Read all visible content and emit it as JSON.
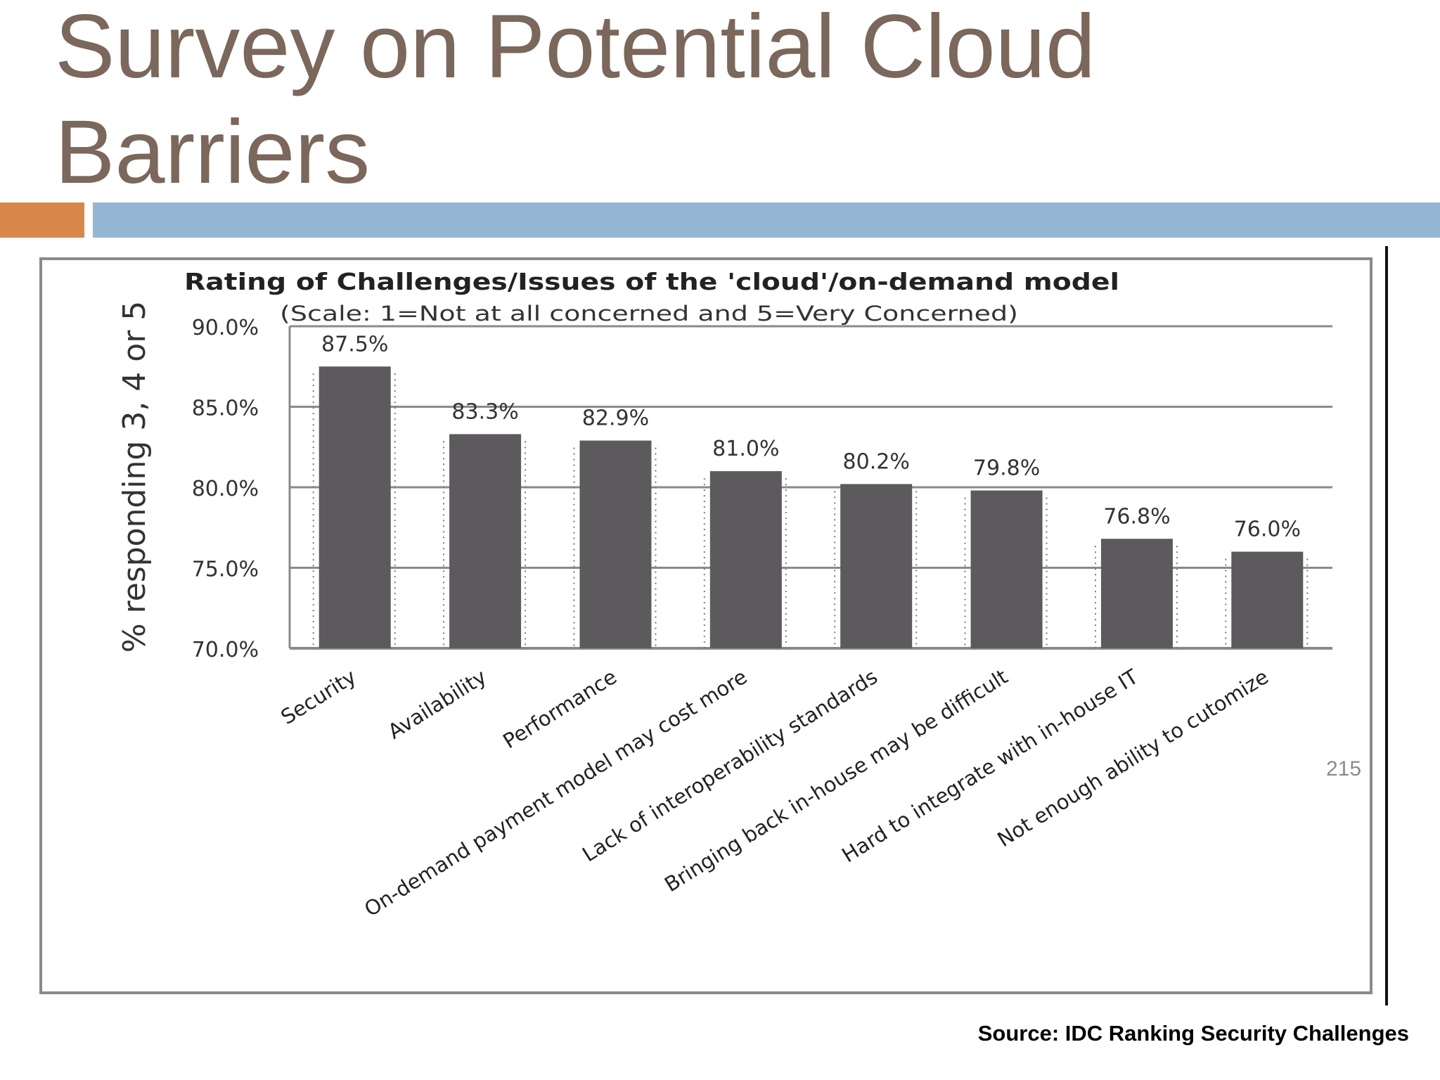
{
  "slide": {
    "title_lines": [
      "Survey on Potential Cloud",
      "Barriers"
    ],
    "page_number": "215",
    "source": "Source:  IDC Ranking Security Challenges"
  },
  "colors": {
    "title": "#7b675b",
    "accent_orange": "#d9864a",
    "accent_blue": "#94b6d4",
    "bar": "#5c5a5c",
    "grid": "#8a8a8a"
  },
  "chart_data": {
    "type": "bar",
    "title": "Rating of Challenges/Issues of the 'cloud'/on-demand model",
    "subtitle": "(Scale: 1=Not at all concerned and 5=Very Concerned)",
    "ylabel": "% responding 3, 4 or 5",
    "xlabel": "",
    "ylim": [
      70,
      90
    ],
    "yticks": [
      90,
      85,
      80,
      75,
      70
    ],
    "ytick_labels": [
      "90.0%",
      "85.0%",
      "80.0%",
      "75.0%",
      "70.0%"
    ],
    "grid": true,
    "categories": [
      "Security",
      "Availability",
      "Performance",
      "On-demand payment model may cost more",
      "Lack of interoperability standards",
      "Bringing back in-house may be difficult",
      "Hard to integrate with in-house IT",
      "Not enough ability to cutomize"
    ],
    "values": [
      87.5,
      83.3,
      82.9,
      81.0,
      80.2,
      79.8,
      76.8,
      76.0
    ],
    "data_labels": [
      "87.5%",
      "83.3%",
      "82.9%",
      "81.0%",
      "80.2%",
      "79.8%",
      "76.8%",
      "76.0%"
    ]
  }
}
